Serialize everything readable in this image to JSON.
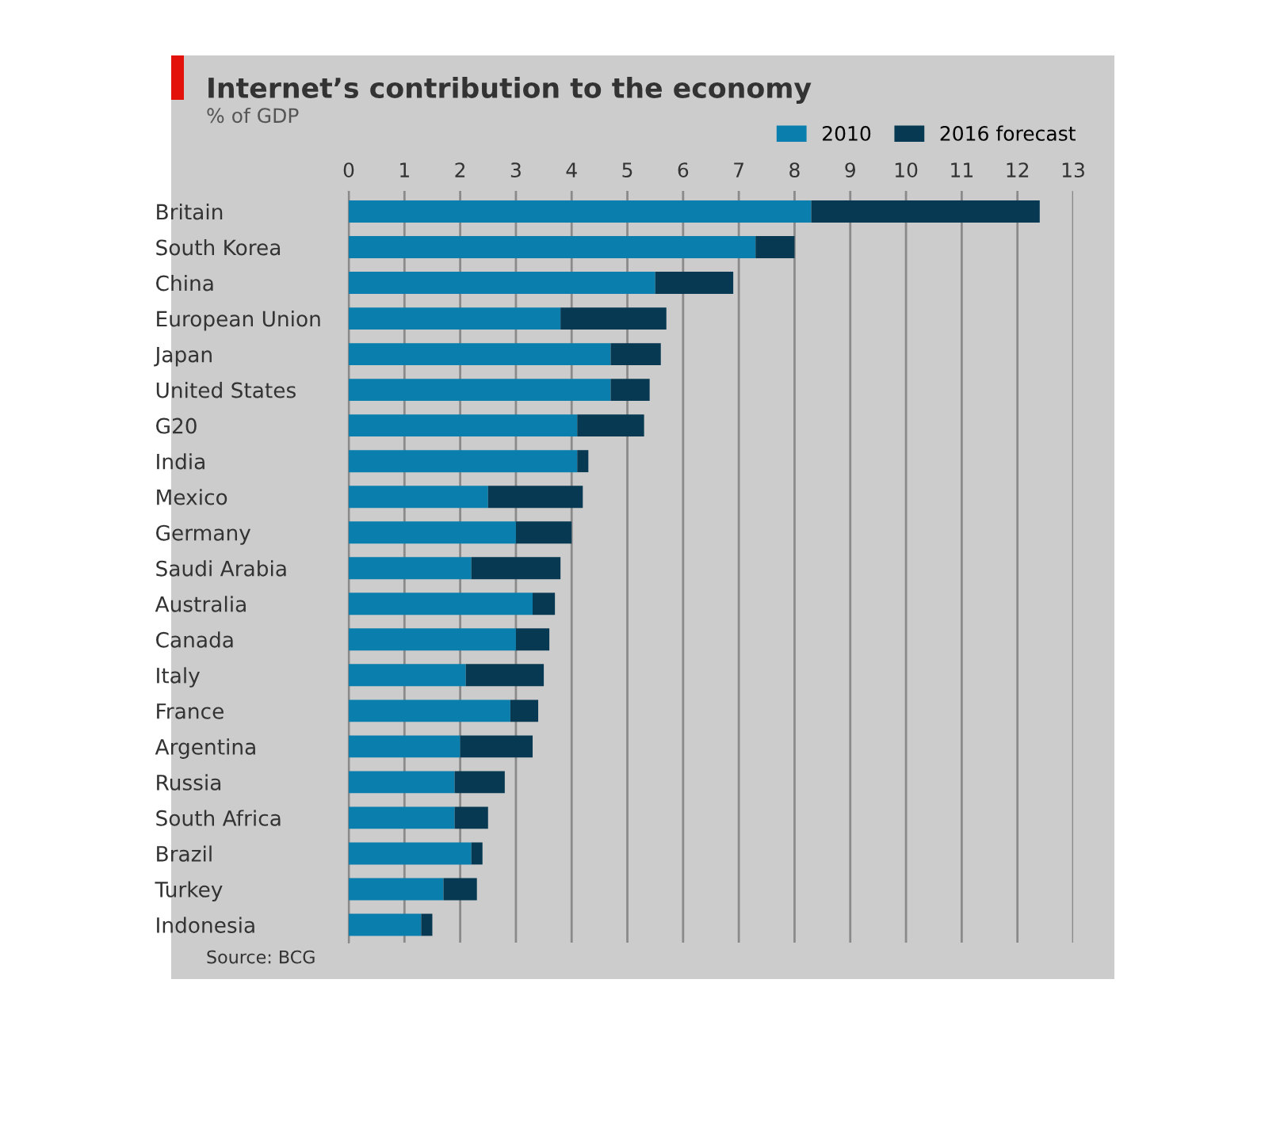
{
  "chart_data": {
    "type": "bar",
    "orientation": "horizontal",
    "stacked": true,
    "title": "Internet’s contribution to the economy",
    "subtitle": "% of GDP",
    "categories": [
      "Britain",
      "South Korea",
      "China",
      "European Union",
      "Japan",
      "United States",
      "G20",
      "India",
      "Mexico",
      "Germany",
      "Saudi Arabia",
      "Australia",
      "Canada",
      "Italy",
      "France",
      "Argentina",
      "Russia",
      "South Africa",
      "Brazil",
      "Turkey",
      "Indonesia"
    ],
    "series": [
      {
        "name": "2010",
        "color": "#0a7fad",
        "values": [
          8.3,
          7.3,
          5.5,
          3.8,
          4.7,
          4.7,
          4.1,
          4.1,
          2.5,
          3.0,
          2.2,
          3.3,
          3.0,
          2.1,
          2.9,
          2.0,
          1.9,
          1.9,
          2.2,
          1.7,
          1.3
        ]
      },
      {
        "name": "2016 forecast",
        "color": "#073a52",
        "values": [
          4.1,
          0.7,
          1.4,
          1.9,
          0.9,
          0.7,
          1.2,
          0.2,
          1.7,
          1.0,
          1.6,
          0.4,
          0.6,
          1.4,
          0.5,
          1.3,
          0.9,
          0.6,
          0.2,
          0.6,
          0.2
        ]
      }
    ],
    "xlim": [
      0,
      13
    ],
    "xticks": [
      0,
      1,
      2,
      3,
      4,
      5,
      6,
      7,
      8,
      9,
      10,
      11,
      12,
      13
    ],
    "grid": "x",
    "legend": "top right",
    "annotations": [
      "Source: BCG"
    ]
  }
}
